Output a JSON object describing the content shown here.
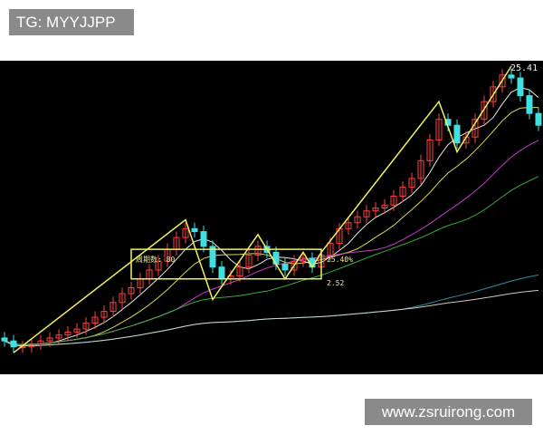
{
  "watermarks": {
    "top": "TG: MYYJJPP",
    "bottom": "www.zsruirong.com"
  },
  "chart_data": {
    "type": "candlestick",
    "title": "",
    "xlabel": "",
    "ylabel": "",
    "ylim": [
      0,
      100
    ],
    "grid": false,
    "background": "#000000",
    "colors": {
      "up": "#ff4040",
      "down": "#40e0e0",
      "trendline": "#f0f060",
      "box": "#f0f060"
    },
    "closes": [
      7,
      5,
      5,
      6,
      7,
      8,
      9,
      10,
      11,
      13,
      15,
      17,
      20,
      23,
      25,
      28,
      31,
      34,
      38,
      42,
      45,
      44,
      39,
      32,
      28,
      29,
      32,
      36,
      39,
      37,
      33,
      31,
      34,
      35,
      32,
      36,
      40,
      45,
      47,
      49,
      51,
      52,
      53,
      56,
      59,
      62,
      68,
      75,
      82,
      80,
      74,
      76,
      82,
      88,
      93,
      97,
      96,
      90,
      84,
      80
    ],
    "moving_averages": [
      {
        "period": 5,
        "color": "#ffffff"
      },
      {
        "period": 10,
        "color": "#f0f060"
      },
      {
        "period": 20,
        "color": "#e040e0"
      },
      {
        "period": 30,
        "color": "#40c040"
      },
      {
        "period": 45,
        "color": "#30a0b0"
      },
      {
        "period": 60,
        "color": "#e0e0d0"
      }
    ],
    "trendline": [
      [
        1,
        3
      ],
      [
        20,
        48
      ],
      [
        23,
        21
      ],
      [
        28,
        43
      ],
      [
        31,
        28
      ],
      [
        33,
        37
      ],
      [
        34,
        32
      ],
      [
        35,
        37
      ],
      [
        48,
        88
      ],
      [
        50,
        71
      ],
      [
        56,
        100
      ]
    ],
    "box": {
      "from": 14,
      "to": 35,
      "low": 28,
      "high": 38
    },
    "annotations": {
      "box_label": "周期数: 80",
      "pct_label": "25.40%",
      "low_label": "2.52",
      "peak_label": "25.41"
    }
  }
}
